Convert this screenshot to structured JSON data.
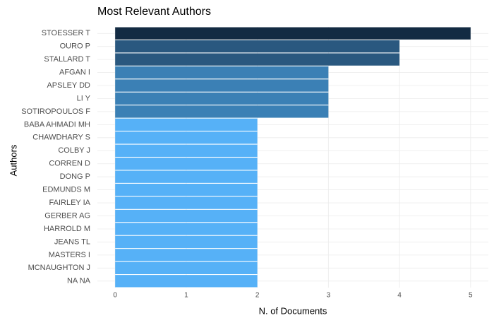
{
  "chart_data": {
    "type": "hbar",
    "title": "Most Relevant Authors",
    "x_label": "N. of Documents",
    "y_label": "Authors",
    "categories": [
      "STOESSER T",
      "OURO P",
      "STALLARD T",
      "AFGAN I",
      "APSLEY DD",
      "LI Y",
      "SOTIROPOULOS F",
      "BABA AHMADI MH",
      "CHAWDHARY S",
      "COLBY J",
      "CORREN D",
      "DONG P",
      "EDMUNDS M",
      "FAIRLEY IA",
      "GERBER AG",
      "HARROLD M",
      "JEANS TL",
      "MASTERS I",
      "MCNAUGHTON J",
      "NA NA"
    ],
    "values": [
      5,
      4,
      4,
      3,
      3,
      3,
      3,
      2,
      2,
      2,
      2,
      2,
      2,
      2,
      2,
      2,
      2,
      2,
      2,
      2
    ],
    "colors": [
      "#132b43",
      "#2a587f",
      "#2a587f",
      "#3b80b5",
      "#3b80b5",
      "#3b80b5",
      "#3b80b5",
      "#56b1f7",
      "#56b1f7",
      "#56b1f7",
      "#56b1f7",
      "#56b1f7",
      "#56b1f7",
      "#56b1f7",
      "#56b1f7",
      "#56b1f7",
      "#56b1f7",
      "#56b1f7",
      "#56b1f7",
      "#56b1f7"
    ],
    "xlim": [
      -0.25,
      5.25
    ],
    "xticks": [
      0,
      1,
      2,
      3,
      4,
      5
    ],
    "grid": true
  }
}
